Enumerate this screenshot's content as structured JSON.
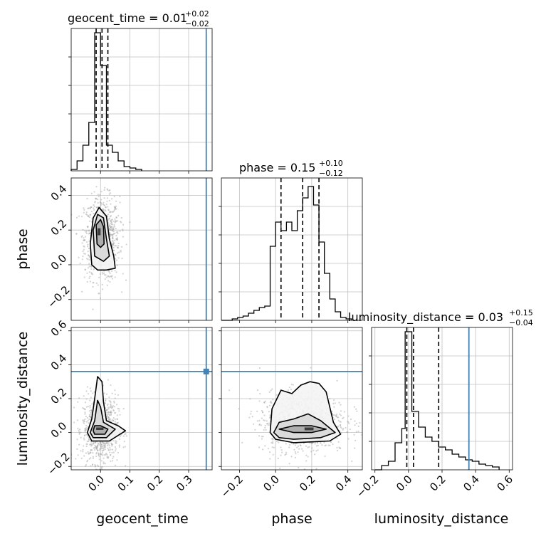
{
  "chart_data": {
    "type": "corner",
    "parameters": [
      "geocent_time",
      "phase",
      "luminosity_distance"
    ],
    "axis_labels": {
      "x": [
        "geocent_time",
        "phase",
        "luminosity_distance"
      ],
      "y": [
        "phase",
        "luminosity_distance"
      ]
    },
    "injection": {
      "geocent_time": 0.36,
      "phase": null,
      "luminosity_distance": 0.36,
      "color": "#4682b4"
    },
    "colors": {
      "hist": "#000000",
      "contour": "#000000",
      "samples": "#9e9e9e",
      "grid": "#c0c0c0",
      "truth": "#4682b4"
    },
    "grid": true,
    "marginals": [
      {
        "param": "geocent_time",
        "title_prefix": "geocent_time = ",
        "median": "0.01",
        "plus": "+0.02",
        "minus": "−0.02",
        "quantiles": [
          -0.015,
          0.005,
          0.025
        ],
        "xlim": [
          -0.1,
          0.38
        ],
        "ylim": [
          0,
          1
        ],
        "bins": [
          {
            "x0": -0.1,
            "x1": -0.08,
            "v": 0.01
          },
          {
            "x0": -0.08,
            "x1": -0.06,
            "v": 0.07
          },
          {
            "x0": -0.06,
            "x1": -0.04,
            "v": 0.18
          },
          {
            "x0": -0.04,
            "x1": -0.02,
            "v": 0.34
          },
          {
            "x0": -0.02,
            "x1": 0.0,
            "v": 0.97
          },
          {
            "x0": 0.0,
            "x1": 0.02,
            "v": 0.74
          },
          {
            "x0": 0.02,
            "x1": 0.04,
            "v": 0.18
          },
          {
            "x0": 0.04,
            "x1": 0.06,
            "v": 0.13
          },
          {
            "x0": 0.06,
            "x1": 0.08,
            "v": 0.07
          },
          {
            "x0": 0.08,
            "x1": 0.1,
            "v": 0.03
          },
          {
            "x0": 0.1,
            "x1": 0.12,
            "v": 0.02
          },
          {
            "x0": 0.12,
            "x1": 0.14,
            "v": 0.01
          }
        ],
        "xticks": [
          0.0,
          0.1,
          0.2,
          0.3
        ]
      },
      {
        "param": "phase",
        "title_prefix": "phase = ",
        "median": "0.15",
        "plus": "+0.10",
        "minus": "−0.12",
        "quantiles": [
          0.03,
          0.15,
          0.24
        ],
        "xlim": [
          -0.3,
          0.48
        ],
        "ylim": [
          0,
          1
        ],
        "bins": [
          {
            "x0": -0.3,
            "x1": -0.27,
            "v": 0.0
          },
          {
            "x0": -0.27,
            "x1": -0.24,
            "v": 0.0
          },
          {
            "x0": -0.24,
            "x1": -0.21,
            "v": 0.01
          },
          {
            "x0": -0.21,
            "x1": -0.18,
            "v": 0.02
          },
          {
            "x0": -0.18,
            "x1": -0.15,
            "v": 0.03
          },
          {
            "x0": -0.15,
            "x1": -0.12,
            "v": 0.05
          },
          {
            "x0": -0.12,
            "x1": -0.09,
            "v": 0.07
          },
          {
            "x0": -0.09,
            "x1": -0.06,
            "v": 0.09
          },
          {
            "x0": -0.06,
            "x1": -0.03,
            "v": 0.1
          },
          {
            "x0": -0.03,
            "x1": 0.0,
            "v": 0.52
          },
          {
            "x0": 0.0,
            "x1": 0.03,
            "v": 0.69
          },
          {
            "x0": 0.03,
            "x1": 0.06,
            "v": 0.63
          },
          {
            "x0": 0.06,
            "x1": 0.09,
            "v": 0.69
          },
          {
            "x0": 0.09,
            "x1": 0.12,
            "v": 0.63
          },
          {
            "x0": 0.12,
            "x1": 0.15,
            "v": 0.77
          },
          {
            "x0": 0.15,
            "x1": 0.18,
            "v": 0.86
          },
          {
            "x0": 0.18,
            "x1": 0.21,
            "v": 0.94
          },
          {
            "x0": 0.21,
            "x1": 0.24,
            "v": 0.81
          },
          {
            "x0": 0.24,
            "x1": 0.27,
            "v": 0.55
          },
          {
            "x0": 0.27,
            "x1": 0.3,
            "v": 0.33
          },
          {
            "x0": 0.3,
            "x1": 0.33,
            "v": 0.15
          },
          {
            "x0": 0.33,
            "x1": 0.36,
            "v": 0.06
          },
          {
            "x0": 0.36,
            "x1": 0.39,
            "v": 0.02
          },
          {
            "x0": 0.39,
            "x1": 0.42,
            "v": 0.01
          }
        ],
        "xticks": [
          -0.2,
          0.0,
          0.2,
          0.4
        ]
      },
      {
        "param": "luminosity_distance",
        "title_prefix": "luminosity_distance = ",
        "median": "0.03",
        "plus": "+0.15",
        "minus": "−0.04",
        "quantiles": [
          -0.01,
          0.03,
          0.18
        ],
        "xlim": [
          -0.22,
          0.62
        ],
        "ylim": [
          0,
          1
        ],
        "bins": [
          {
            "x0": -0.2,
            "x1": -0.16,
            "v": 0.0
          },
          {
            "x0": -0.16,
            "x1": -0.12,
            "v": 0.03
          },
          {
            "x0": -0.12,
            "x1": -0.08,
            "v": 0.06
          },
          {
            "x0": -0.08,
            "x1": -0.04,
            "v": 0.19
          },
          {
            "x0": -0.04,
            "x1": -0.02,
            "v": 0.29
          },
          {
            "x0": -0.02,
            "x1": 0.02,
            "v": 0.97
          },
          {
            "x0": 0.02,
            "x1": 0.06,
            "v": 0.41
          },
          {
            "x0": 0.06,
            "x1": 0.1,
            "v": 0.3
          },
          {
            "x0": 0.1,
            "x1": 0.14,
            "v": 0.23
          },
          {
            "x0": 0.14,
            "x1": 0.18,
            "v": 0.2
          },
          {
            "x0": 0.18,
            "x1": 0.22,
            "v": 0.16
          },
          {
            "x0": 0.22,
            "x1": 0.26,
            "v": 0.14
          },
          {
            "x0": 0.26,
            "x1": 0.3,
            "v": 0.11
          },
          {
            "x0": 0.3,
            "x1": 0.34,
            "v": 0.09
          },
          {
            "x0": 0.34,
            "x1": 0.38,
            "v": 0.07
          },
          {
            "x0": 0.38,
            "x1": 0.42,
            "v": 0.06
          },
          {
            "x0": 0.42,
            "x1": 0.46,
            "v": 0.04
          },
          {
            "x0": 0.46,
            "x1": 0.5,
            "v": 0.03
          },
          {
            "x0": 0.5,
            "x1": 0.54,
            "v": 0.02
          }
        ],
        "xticks": [
          -0.2,
          0.0,
          0.2,
          0.4,
          0.6
        ]
      }
    ],
    "joint_panels": [
      {
        "x_param": "geocent_time",
        "y_param": "phase",
        "xlim": [
          -0.1,
          0.38
        ],
        "ylim": [
          -0.32,
          0.5
        ],
        "xticks": [
          0.0,
          0.1,
          0.2,
          0.3
        ],
        "yticks": [
          -0.2,
          0.0,
          0.2,
          0.4
        ],
        "yticklabels": [
          "−0.2",
          "0.0",
          "0.2",
          "0.4"
        ],
        "sample_center": [
          0.005,
          0.15
        ],
        "sample_spread": [
          0.03,
          0.12
        ],
        "contours": [
          {
            "level": 0.9,
            "points": [
              [
                -0.03,
                0.0
              ],
              [
                -0.035,
                0.12
              ],
              [
                -0.025,
                0.27
              ],
              [
                -0.005,
                0.33
              ],
              [
                0.02,
                0.28
              ],
              [
                0.03,
                0.15
              ],
              [
                0.045,
                0.05
              ],
              [
                0.05,
                -0.02
              ],
              [
                0.02,
                -0.03
              ],
              [
                -0.01,
                -0.03
              ]
            ]
          },
          {
            "level": 0.6,
            "points": [
              [
                -0.02,
                0.05
              ],
              [
                -0.025,
                0.2
              ],
              [
                -0.01,
                0.29
              ],
              [
                0.01,
                0.27
              ],
              [
                0.02,
                0.15
              ],
              [
                0.03,
                0.05
              ],
              [
                0.01,
                0.02
              ]
            ]
          },
          {
            "level": 0.3,
            "points": [
              [
                -0.012,
                0.12
              ],
              [
                -0.015,
                0.23
              ],
              [
                0.0,
                0.26
              ],
              [
                0.01,
                0.22
              ],
              [
                0.012,
                0.12
              ],
              [
                0.0,
                0.1
              ]
            ]
          },
          {
            "level": 0.1,
            "points": [
              [
                -0.01,
                0.17
              ],
              [
                -0.01,
                0.21
              ],
              [
                0.0,
                0.21
              ],
              [
                0.0,
                0.17
              ]
            ]
          }
        ]
      },
      {
        "x_param": "geocent_time",
        "y_param": "luminosity_distance",
        "xlim": [
          -0.1,
          0.38
        ],
        "ylim": [
          -0.22,
          0.62
        ],
        "xticks": [
          0.0,
          0.1,
          0.2,
          0.3
        ],
        "xticklabels": [
          "0.0",
          "0.1",
          "0.2",
          "0.3"
        ],
        "yticks": [
          -0.2,
          0.0,
          0.2,
          0.4,
          0.6
        ],
        "yticklabels": [
          "−0.2",
          "0.0",
          "0.2",
          "0.4",
          "0.6"
        ],
        "sample_center": [
          0.0,
          0.02
        ],
        "sample_spread": [
          0.03,
          0.1
        ],
        "contours": [
          {
            "level": 0.9,
            "points": [
              [
                -0.045,
                0.0
              ],
              [
                -0.03,
                0.08
              ],
              [
                -0.02,
                0.2
              ],
              [
                -0.01,
                0.33
              ],
              [
                0.005,
                0.3
              ],
              [
                0.01,
                0.18
              ],
              [
                0.02,
                0.07
              ],
              [
                0.06,
                0.04
              ],
              [
                0.085,
                0.01
              ],
              [
                0.03,
                -0.05
              ],
              [
                -0.03,
                -0.05
              ]
            ]
          },
          {
            "level": 0.6,
            "points": [
              [
                -0.035,
                0.0
              ],
              [
                -0.02,
                0.07
              ],
              [
                -0.01,
                0.19
              ],
              [
                0.0,
                0.15
              ],
              [
                0.01,
                0.06
              ],
              [
                0.05,
                0.02
              ],
              [
                0.02,
                -0.03
              ],
              [
                -0.025,
                -0.03
              ]
            ]
          },
          {
            "level": 0.3,
            "points": [
              [
                -0.025,
                0.01
              ],
              [
                -0.02,
                0.04
              ],
              [
                0.0,
                0.04
              ],
              [
                0.025,
                0.02
              ],
              [
                0.015,
                -0.01
              ],
              [
                -0.02,
                -0.01
              ]
            ]
          },
          {
            "level": 0.1,
            "points": [
              [
                -0.015,
                0.015
              ],
              [
                -0.015,
                0.03
              ],
              [
                0.01,
                0.03
              ],
              [
                0.01,
                0.015
              ]
            ]
          }
        ],
        "truth_point": [
          0.36,
          0.36
        ]
      },
      {
        "x_param": "phase",
        "y_param": "luminosity_distance",
        "xlim": [
          -0.3,
          0.48
        ],
        "ylim": [
          -0.22,
          0.62
        ],
        "xticks": [
          -0.2,
          0.0,
          0.2,
          0.4
        ],
        "xticklabels": [
          "−0.2",
          "0.0",
          "0.2",
          "0.4"
        ],
        "yticks": [
          -0.2,
          0.0,
          0.2,
          0.4,
          0.6
        ],
        "sample_center": [
          0.15,
          0.06
        ],
        "sample_spread": [
          0.12,
          0.09
        ],
        "contours": [
          {
            "level": 0.9,
            "points": [
              [
                -0.03,
                0.0
              ],
              [
                -0.02,
                0.14
              ],
              [
                0.03,
                0.25
              ],
              [
                0.09,
                0.23
              ],
              [
                0.14,
                0.28
              ],
              [
                0.19,
                0.3
              ],
              [
                0.24,
                0.29
              ],
              [
                0.28,
                0.24
              ],
              [
                0.3,
                0.15
              ],
              [
                0.32,
                0.06
              ],
              [
                0.36,
                -0.01
              ],
              [
                0.3,
                -0.05
              ],
              [
                0.1,
                -0.06
              ],
              [
                0.0,
                -0.04
              ]
            ]
          },
          {
            "level": 0.6,
            "points": [
              [
                -0.01,
                0.0
              ],
              [
                0.02,
                0.06
              ],
              [
                0.1,
                0.08
              ],
              [
                0.18,
                0.11
              ],
              [
                0.25,
                0.07
              ],
              [
                0.33,
                0.0
              ],
              [
                0.25,
                -0.03
              ],
              [
                0.1,
                -0.04
              ],
              [
                0.02,
                -0.03
              ]
            ]
          },
          {
            "level": 0.3,
            "points": [
              [
                0.02,
                0.02
              ],
              [
                0.1,
                0.04
              ],
              [
                0.2,
                0.04
              ],
              [
                0.28,
                0.02
              ],
              [
                0.2,
                0.0
              ],
              [
                0.1,
                0.0
              ]
            ]
          },
          {
            "level": 0.1,
            "points": [
              [
                0.16,
                0.013
              ],
              [
                0.16,
                0.03
              ],
              [
                0.21,
                0.03
              ],
              [
                0.21,
                0.013
              ]
            ]
          }
        ],
        "truth_h": 0.36
      }
    ]
  }
}
